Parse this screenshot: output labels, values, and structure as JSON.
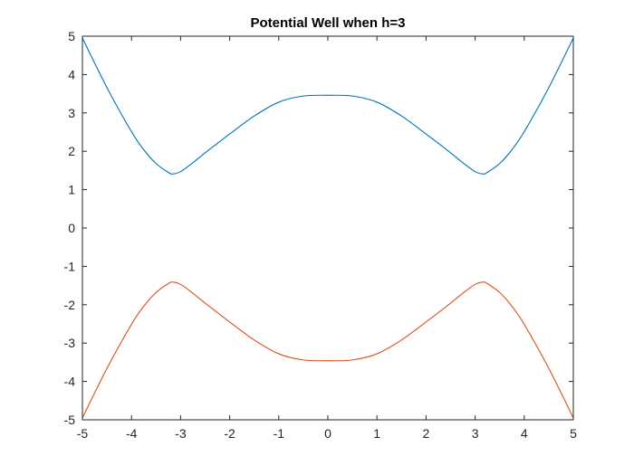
{
  "chart_data": {
    "type": "line",
    "title": "Potential Well when h=3",
    "xlabel": "",
    "ylabel": "",
    "xlim": [
      -5,
      5
    ],
    "ylim": [
      -5,
      5
    ],
    "xticks": [
      -5,
      -4,
      -3,
      -2,
      -1,
      0,
      1,
      2,
      3,
      4,
      5
    ],
    "yticks": [
      -5,
      -4,
      -3,
      -2,
      -1,
      0,
      1,
      2,
      3,
      4,
      5
    ],
    "xtick_labels": [
      "-5",
      "-4",
      "-3",
      "-2",
      "-1",
      "0",
      "1",
      "2",
      "3",
      "4",
      "5"
    ],
    "ytick_labels": [
      "-5",
      "-4",
      "-3",
      "-2",
      "-1",
      "0",
      "1",
      "2",
      "3",
      "4",
      "5"
    ],
    "grid": false,
    "legend": "none",
    "series": [
      {
        "color": "#0072BD",
        "x": [
          -5,
          -4.5,
          -4,
          -3.75,
          -3.5,
          -3.25,
          -3.16,
          -3,
          -2.75,
          -2.5,
          -2,
          -1.5,
          -1,
          -0.5,
          0,
          0.5,
          1,
          1.5,
          2,
          2.5,
          2.75,
          3,
          3.16,
          3.25,
          3.5,
          3.75,
          4,
          4.5,
          5
        ],
        "y": [
          4.95,
          3.66,
          2.51,
          2.04,
          1.68,
          1.45,
          1.41,
          1.47,
          1.7,
          1.96,
          2.45,
          2.92,
          3.28,
          3.44,
          3.46,
          3.44,
          3.28,
          2.92,
          2.45,
          1.96,
          1.7,
          1.47,
          1.41,
          1.45,
          1.68,
          2.04,
          2.51,
          3.66,
          4.95
        ]
      },
      {
        "color": "#D95319",
        "x": [
          -5,
          -4.5,
          -4,
          -3.75,
          -3.5,
          -3.25,
          -3.16,
          -3,
          -2.75,
          -2.5,
          -2,
          -1.5,
          -1,
          -0.5,
          0,
          0.5,
          1,
          1.5,
          2,
          2.5,
          2.75,
          3,
          3.16,
          3.25,
          3.5,
          3.75,
          4,
          4.5,
          5
        ],
        "y": [
          -4.95,
          -3.66,
          -2.51,
          -2.04,
          -1.68,
          -1.45,
          -1.41,
          -1.47,
          -1.7,
          -1.96,
          -2.45,
          -2.92,
          -3.28,
          -3.44,
          -3.46,
          -3.44,
          -3.28,
          -2.92,
          -2.45,
          -1.96,
          -1.7,
          -1.47,
          -1.41,
          -1.45,
          -1.68,
          -2.04,
          -2.51,
          -3.66,
          -4.95
        ]
      }
    ]
  }
}
